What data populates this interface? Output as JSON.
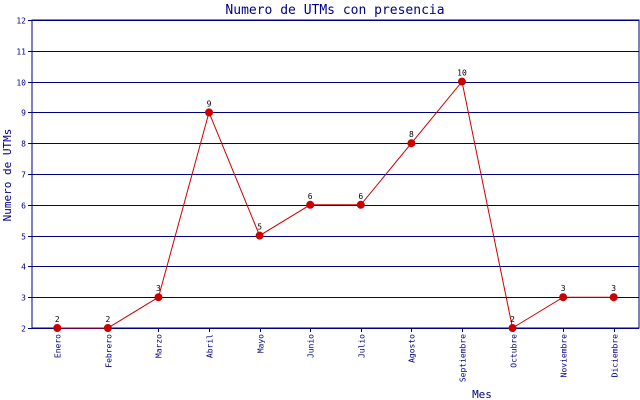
{
  "chart_data": {
    "type": "line",
    "title": "Numero de UTMs con presencia",
    "xlabel": "Mes",
    "ylabel": "Numero de UTMs",
    "categories": [
      "Enero",
      "Febrero",
      "Marzo",
      "Abril",
      "Mayo",
      "Junio",
      "Julio",
      "Agosto",
      "Septiembre",
      "Octubre",
      "Noviembre",
      "Diciembre"
    ],
    "series": [
      {
        "values": [
          2,
          2,
          3,
          9,
          5,
          6,
          6,
          8,
          10,
          2,
          3,
          3
        ]
      }
    ],
    "ylim": [
      2,
      12
    ],
    "yticks": [
      2,
      3,
      4,
      5,
      6,
      7,
      8,
      9,
      10,
      11,
      12
    ],
    "grid": "horizontal",
    "data_labels": true,
    "colors": {
      "line": "#cc0000",
      "marker": "#cc0000",
      "grid": "#000080",
      "text": "#000080",
      "label_text": "#000000"
    }
  }
}
